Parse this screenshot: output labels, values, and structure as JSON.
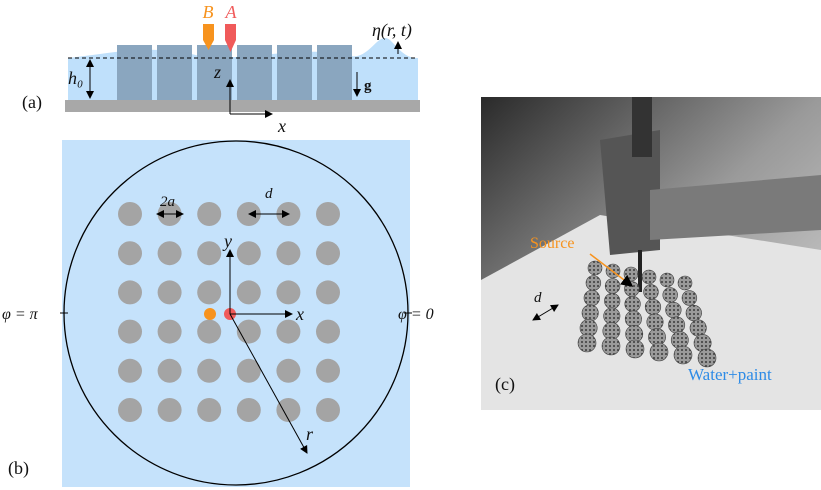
{
  "panel_a": {
    "label": "(a)",
    "probe_b": "B",
    "probe_a": "A",
    "surface": "η(r, t)",
    "depth": "h₀",
    "z_axis": "z",
    "gravity": "g",
    "x_axis": "x"
  },
  "panel_b": {
    "label": "(b)",
    "radius_pillar": "2a",
    "spacing": "d",
    "y_axis": "y",
    "x_axis": "x",
    "phi_left": "φ = π",
    "phi_right": "φ = 0",
    "radius": "r"
  },
  "panel_c": {
    "label": "(c)",
    "source": "Source",
    "spacing": "d",
    "medium": "Water+paint"
  }
}
